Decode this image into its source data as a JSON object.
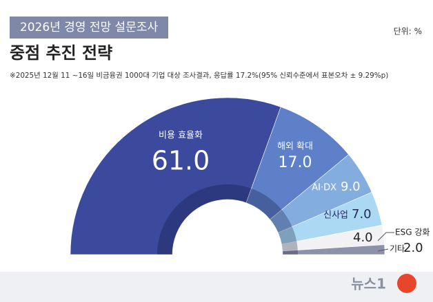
{
  "chart_data": {
    "type": "half-donut",
    "subtitle": "2026년 경영 전망 설문조사",
    "title": "중점 추진 전략",
    "unit": "단위: %",
    "note": "※2025년 12월 11 ~16일 비금융권 1000대 기업 대상 조사결과, 응답률 17.2%(95% 신뢰수준에서 표본오차 ± 9.29%p)",
    "source": "뉴스1",
    "categories": [
      "비용 효율화",
      "해외 확대",
      "AI·DX",
      "신사업",
      "ESG 강화",
      "기타"
    ],
    "values": [
      61,
      17,
      9,
      7,
      4,
      2
    ],
    "value_labels": [
      "61.0",
      "17.0",
      "9.0",
      "7.0",
      "4.0",
      "2.0"
    ],
    "colors": [
      "#3b4a9c",
      "#5d80c8",
      "#83acdf",
      "#abd8f2",
      "#f2f2f4",
      "#8d92ab"
    ]
  }
}
